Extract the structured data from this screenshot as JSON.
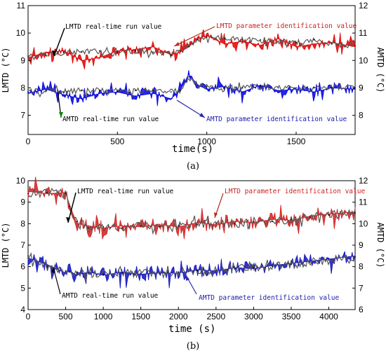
{
  "chart_data": [
    {
      "type": "line",
      "panel": "(a)",
      "xlabel": "time(s)",
      "ylabel_left": "LMTD (°C)",
      "ylabel_right": "AMTD (°C)",
      "xlim": [
        0,
        1830
      ],
      "ylim_left": [
        6.3,
        11
      ],
      "ylim_right": [
        7.3,
        12
      ],
      "xticks": [
        0,
        500,
        1000,
        1500
      ],
      "yticks_left": [
        7,
        8,
        9,
        10,
        11
      ],
      "yticks_right": [
        8,
        9,
        10,
        11,
        12
      ],
      "grid": false,
      "series": [
        {
          "name": "LMTD real-time run value",
          "axis": "left",
          "color": "#000000",
          "x": [
            0,
            100,
            200,
            300,
            400,
            500,
            600,
            700,
            800,
            850,
            900,
            950,
            1000,
            1100,
            1200,
            1300,
            1400,
            1500,
            1600,
            1700,
            1830
          ],
          "y": [
            9.15,
            9.2,
            9.3,
            9.3,
            9.35,
            9.3,
            9.35,
            9.3,
            9.2,
            9.35,
            9.5,
            9.75,
            9.85,
            9.8,
            9.75,
            9.75,
            9.7,
            9.65,
            9.75,
            9.6,
            9.55
          ]
        },
        {
          "name": "LMTD parameter identification value",
          "axis": "left",
          "color": "#e00000",
          "x": [
            0,
            100,
            200,
            300,
            400,
            500,
            600,
            700,
            800,
            850,
            900,
            950,
            1000,
            1100,
            1200,
            1300,
            1400,
            1500,
            1600,
            1700,
            1830
          ],
          "y": [
            9.1,
            9.3,
            9.35,
            9.0,
            9.1,
            9.35,
            9.4,
            9.5,
            9.2,
            9.3,
            9.5,
            9.8,
            9.9,
            9.6,
            9.7,
            9.55,
            9.8,
            9.5,
            9.6,
            9.65,
            9.5
          ]
        },
        {
          "name": "AMTD real-time run value",
          "axis": "right",
          "color": "#000000",
          "x": [
            0,
            100,
            200,
            300,
            400,
            500,
            600,
            700,
            800,
            850,
            900,
            950,
            1000,
            1100,
            1200,
            1300,
            1400,
            1500,
            1600,
            1700,
            1830
          ],
          "y": [
            8.85,
            8.9,
            8.85,
            8.9,
            8.9,
            8.85,
            8.9,
            8.9,
            8.85,
            8.9,
            9.4,
            9.1,
            9.05,
            9.0,
            9.0,
            9.05,
            9.0,
            9.0,
            9.0,
            9.0,
            9.0
          ]
        },
        {
          "name": "AMTD parameter identification value",
          "axis": "right",
          "color": "#0000e0",
          "x": [
            0,
            100,
            200,
            300,
            400,
            500,
            600,
            700,
            800,
            850,
            900,
            950,
            1000,
            1100,
            1200,
            1300,
            1400,
            1500,
            1600,
            1700,
            1830
          ],
          "y": [
            8.8,
            8.95,
            8.75,
            8.6,
            8.8,
            8.85,
            8.7,
            8.8,
            8.6,
            8.9,
            9.5,
            9.1,
            8.95,
            9.05,
            8.85,
            9.1,
            8.9,
            8.95,
            8.85,
            9.0,
            8.95
          ]
        }
      ],
      "annotations": [
        "LMTD real-time run value",
        "LMTD parameter identification value",
        "AMTD real-time run value",
        "AMTD parameter identification value"
      ]
    },
    {
      "type": "line",
      "panel": "(b)",
      "xlabel": "time (s)",
      "ylabel_left": "LMTD (°C)",
      "ylabel_right": "AMTD (°C)",
      "xlim": [
        0,
        4350
      ],
      "ylim_left": [
        4,
        10
      ],
      "ylim_right": [
        6,
        12
      ],
      "xticks": [
        0,
        500,
        1000,
        1500,
        2000,
        2500,
        3000,
        3500,
        4000
      ],
      "yticks_left": [
        4,
        5,
        6,
        7,
        8,
        9,
        10
      ],
      "yticks_right": [
        6,
        7,
        8,
        9,
        10,
        11,
        12
      ],
      "grid": false,
      "series": [
        {
          "name": "LMTD real-time run value",
          "axis": "left",
          "color": "#000000",
          "x": [
            0,
            250,
            500,
            550,
            650,
            800,
            1000,
            1250,
            1500,
            1750,
            2000,
            2250,
            2500,
            2750,
            3000,
            3250,
            3500,
            3750,
            4000,
            4350
          ],
          "y": [
            9.4,
            9.45,
            9.4,
            8.8,
            8.1,
            7.8,
            7.85,
            7.8,
            7.9,
            7.85,
            7.9,
            7.95,
            8.0,
            8.0,
            8.1,
            8.1,
            8.2,
            8.3,
            8.4,
            8.5
          ]
        },
        {
          "name": "LMTD parameter identification value",
          "axis": "left",
          "color": "#d02020",
          "x": [
            0,
            250,
            500,
            550,
            650,
            800,
            1000,
            1250,
            1500,
            1750,
            2000,
            2250,
            2500,
            2750,
            3000,
            3250,
            3500,
            3750,
            4000,
            4350
          ],
          "y": [
            9.5,
            9.4,
            9.45,
            8.9,
            8.0,
            7.9,
            7.8,
            7.9,
            7.85,
            7.95,
            7.85,
            8.05,
            7.95,
            8.1,
            8.05,
            8.2,
            8.15,
            8.35,
            8.45,
            8.55
          ]
        },
        {
          "name": "AMTD real-time run value",
          "axis": "right",
          "color": "#000000",
          "x": [
            0,
            250,
            500,
            550,
            650,
            800,
            1000,
            1250,
            1500,
            1750,
            2000,
            2250,
            2500,
            2750,
            3000,
            3250,
            3500,
            3750,
            4000,
            4350
          ],
          "y": [
            8.5,
            8.0,
            7.8,
            7.75,
            7.7,
            7.7,
            7.65,
            7.7,
            7.7,
            7.65,
            7.75,
            7.8,
            7.85,
            7.9,
            7.95,
            8.0,
            8.1,
            8.2,
            8.3,
            8.45
          ]
        },
        {
          "name": "AMTD parameter identification value",
          "axis": "right",
          "color": "#1010c0",
          "x": [
            0,
            250,
            500,
            550,
            650,
            800,
            1000,
            1250,
            1500,
            1750,
            2000,
            2250,
            2500,
            2750,
            3000,
            3250,
            3500,
            3750,
            4000,
            4350
          ],
          "y": [
            8.4,
            8.1,
            7.7,
            7.8,
            7.6,
            7.75,
            7.6,
            7.75,
            7.65,
            7.7,
            7.7,
            7.85,
            7.8,
            7.95,
            7.9,
            8.05,
            8.15,
            8.25,
            8.35,
            8.5
          ]
        }
      ],
      "annotations": [
        "LMTD real-time run value",
        "LMTD parameter identification value",
        "AMTD real-time run value",
        "AMTD parameter identification value"
      ]
    }
  ]
}
